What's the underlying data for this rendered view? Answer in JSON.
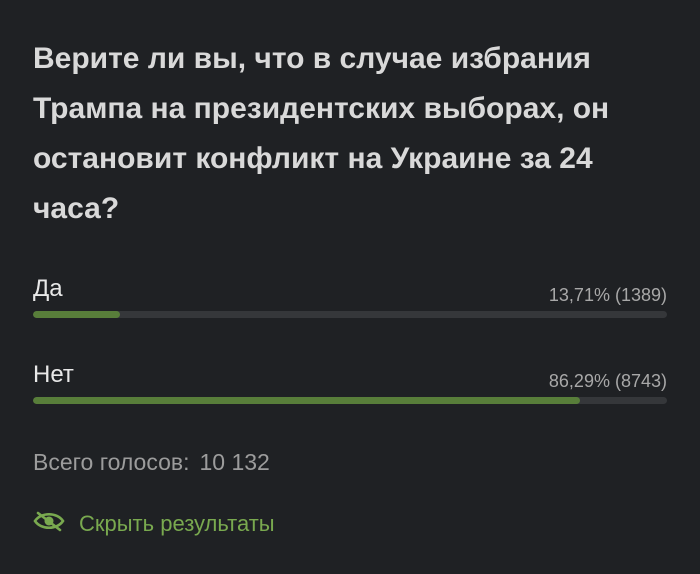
{
  "poll": {
    "question": "Верите ли вы, что в случае избрания Трампа на президентских выборах, он остановит конфликт на Украине за 24 часа?",
    "options": [
      {
        "label": "Да",
        "stat": "13,71% (1389)",
        "percent": 13.71
      },
      {
        "label": "Нет",
        "stat": "86,29% (8743)",
        "percent": 86.29
      }
    ],
    "total_label": "Всего голосов:",
    "total_value": "10 132",
    "hide_results_label": "Скрыть результаты"
  },
  "colors": {
    "background": "#1f2124",
    "bar_fill": "#587e3a",
    "bar_track": "#35373a",
    "accent": "#79a94f"
  },
  "icons": {
    "hide_results": "eye-slash-icon"
  }
}
